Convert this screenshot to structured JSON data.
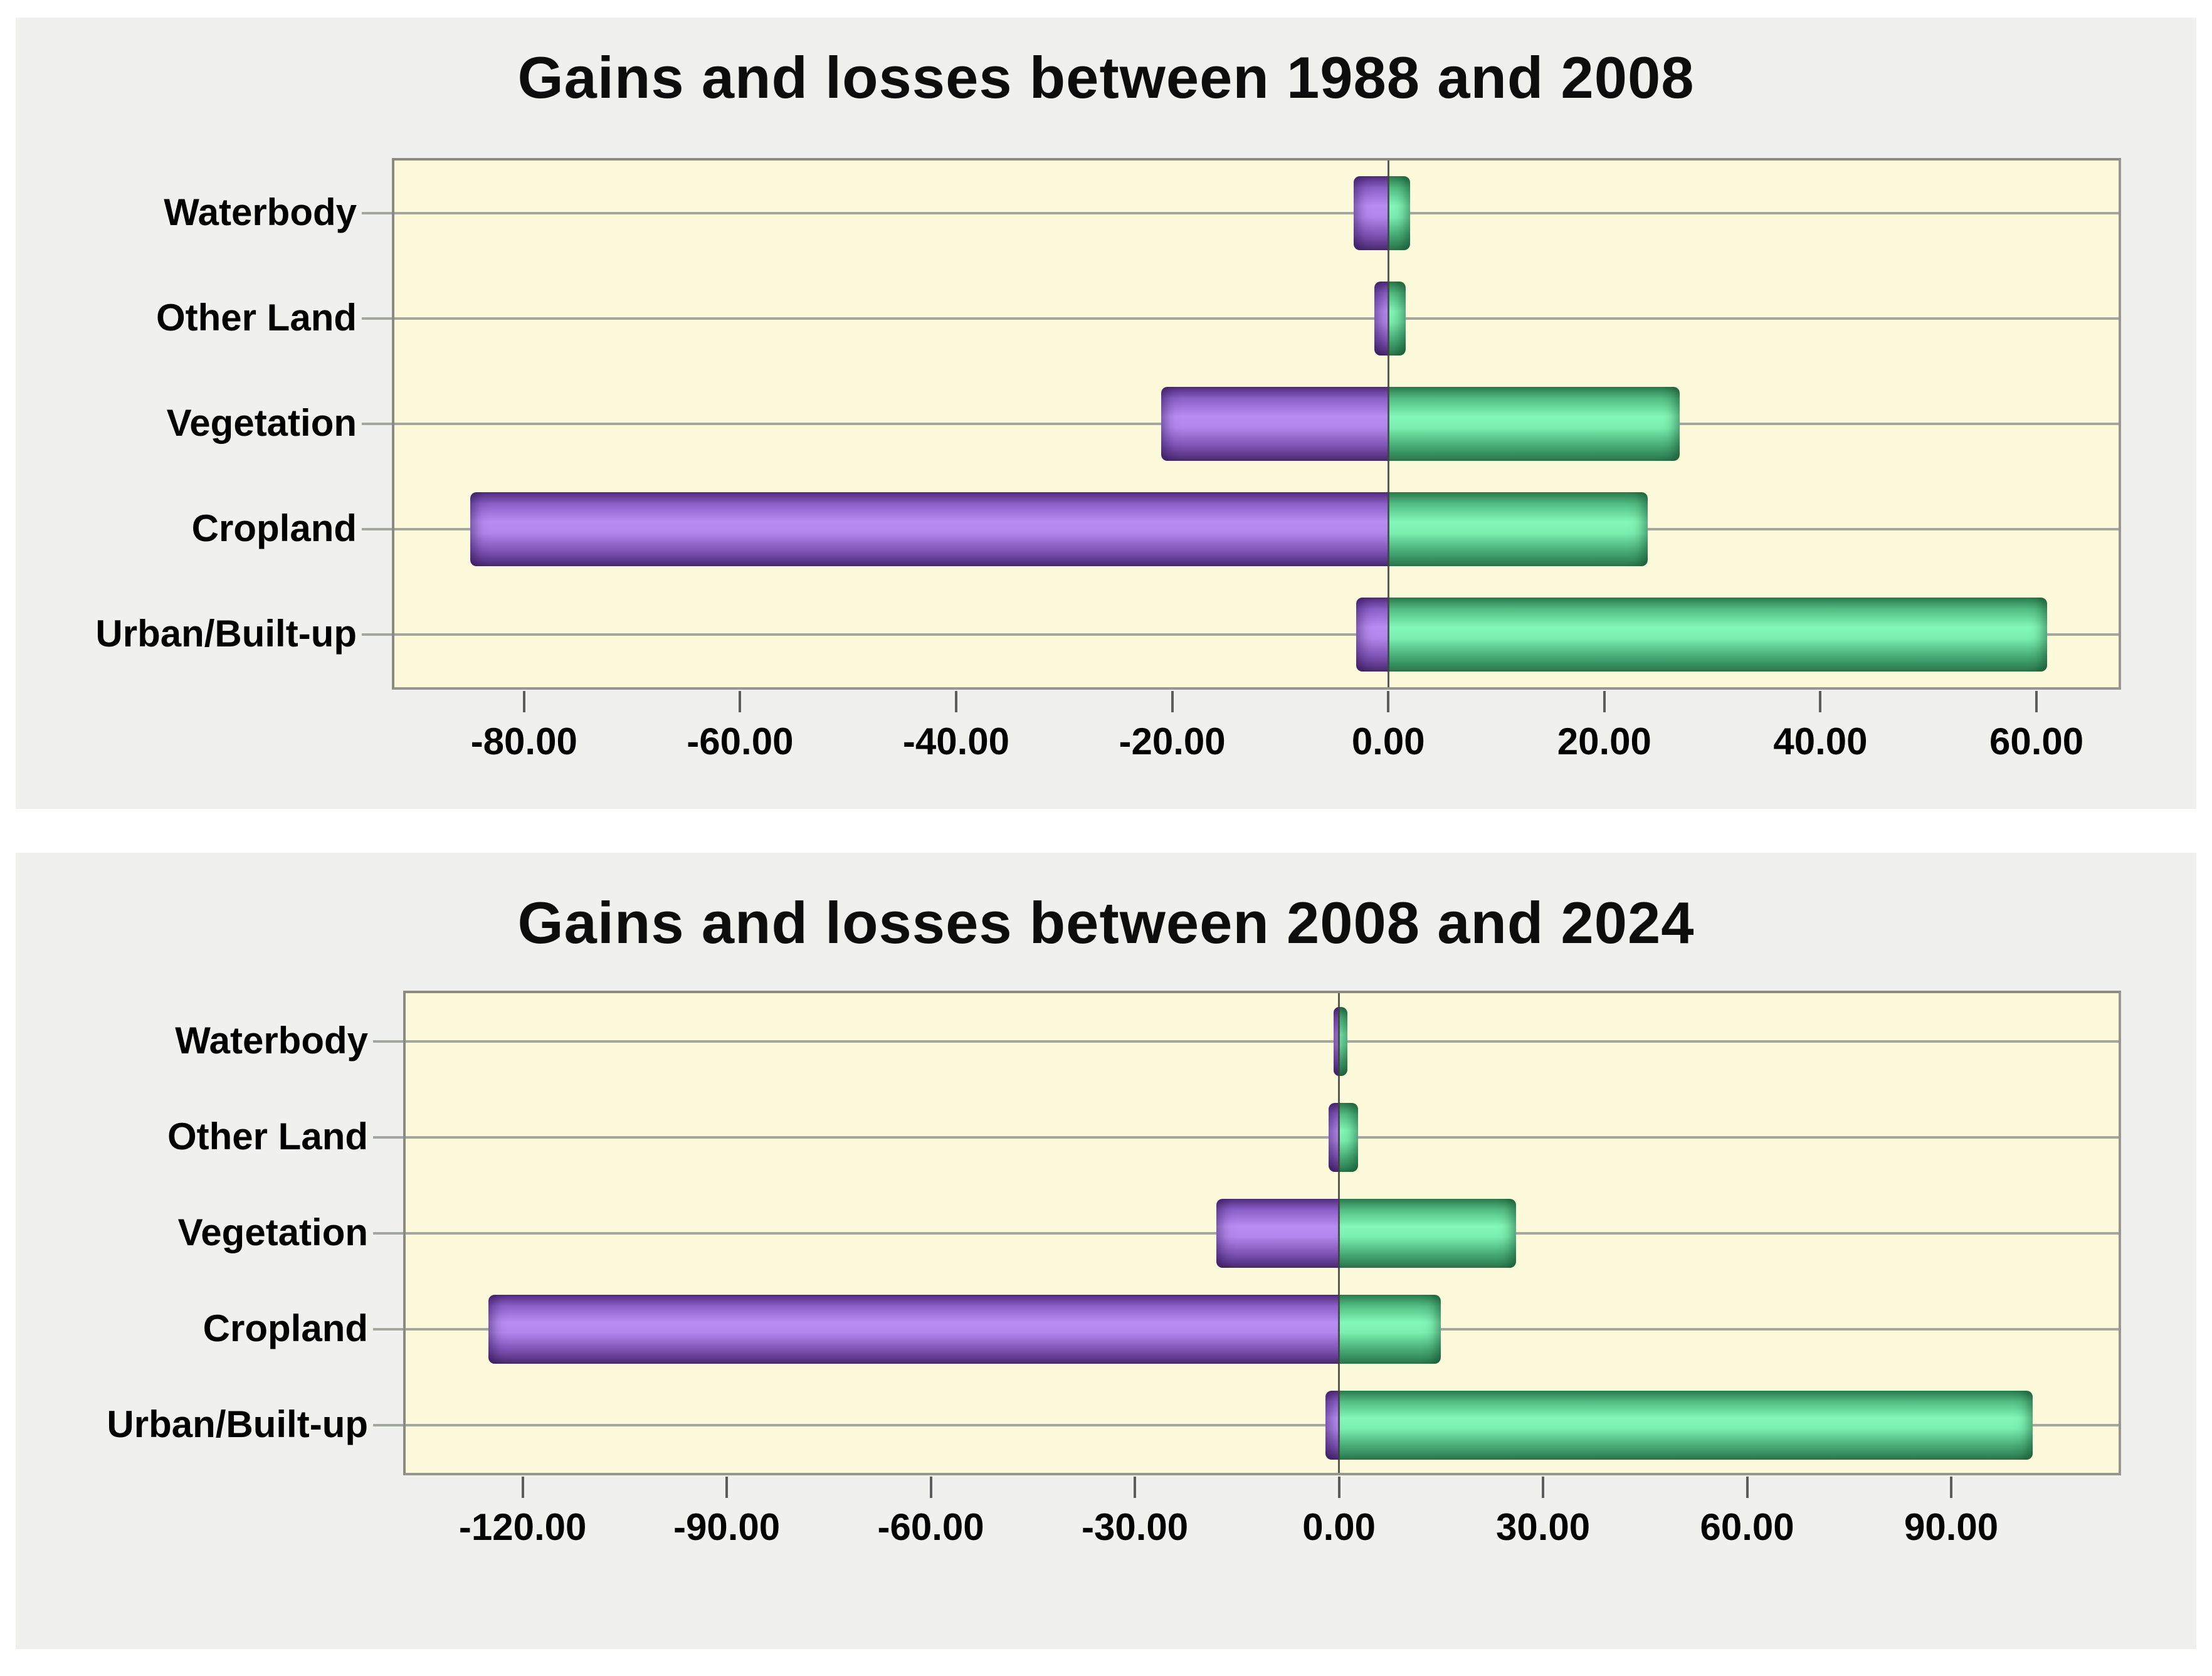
{
  "colors": {
    "page_background": "#ffffff",
    "panel_background": "#f0f0ef",
    "plot_background": "#fcfadb",
    "gridline": "#a3a79f",
    "loss_bar": "#9b6bd6",
    "gain_bar": "#5fd398",
    "text": "#000000"
  },
  "chart_data": [
    {
      "type": "bar",
      "orientation": "horizontal",
      "title": "Gains and losses between 1988 and 2008",
      "categories": [
        "Waterbody",
        "Other Land",
        "Vegetation",
        "Cropland",
        "Urban/Built-up"
      ],
      "series": [
        {
          "name": "Losses",
          "color": "#9b6bd6",
          "values": [
            -3.2,
            -1.3,
            -21.0,
            -85.0,
            -3.0
          ]
        },
        {
          "name": "Gains",
          "color": "#5fd398",
          "values": [
            2.0,
            1.6,
            27.0,
            24.0,
            61.0
          ]
        }
      ],
      "x_axis": {
        "min": -92.0,
        "max": 67.6,
        "tick_values": [
          -80,
          -60,
          -40,
          -20,
          0,
          20,
          40,
          60
        ],
        "tick_labels": [
          "-80.00",
          "-60.00",
          "-40.00",
          "-20.00",
          "0.00",
          "20.00",
          "40.00",
          "60.00"
        ]
      },
      "ylabel": "",
      "xlabel": "",
      "grid": "category gridlines on",
      "legend": "none"
    },
    {
      "type": "bar",
      "orientation": "horizontal",
      "title": "Gains and losses between 2008 and 2024",
      "categories": [
        "Waterbody",
        "Other Land",
        "Vegetation",
        "Cropland",
        "Urban/Built-up"
      ],
      "series": [
        {
          "name": "Losses",
          "color": "#9b6bd6",
          "values": [
            -0.8,
            -1.5,
            -18.0,
            -125.0,
            -2.0
          ]
        },
        {
          "name": "Gains",
          "color": "#5fd398",
          "values": [
            1.2,
            2.8,
            26.0,
            15.0,
            102.0
          ]
        }
      ],
      "x_axis": {
        "min": -137.2,
        "max": 114.6,
        "tick_values": [
          -120,
          -90,
          -60,
          -30,
          0,
          30,
          60,
          90
        ],
        "tick_labels": [
          "-120.00",
          "-90.00",
          "-60.00",
          "-30.00",
          "0.00",
          "30.00",
          "60.00",
          "90.00"
        ]
      },
      "ylabel": "",
      "xlabel": "",
      "grid": "category gridlines on",
      "legend": "none"
    }
  ]
}
